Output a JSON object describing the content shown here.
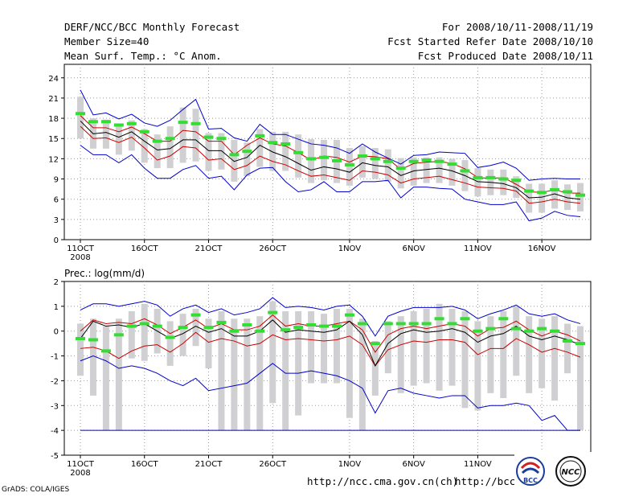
{
  "header": {
    "title": "DERF/NCC/BCC Monthly Forecast",
    "member_size": "Member Size=40",
    "variable": "Mean Surf. Temp.: °C Anom.",
    "period": "For 2008/10/11-2008/11/19",
    "started": "Fcst Started Refer Date 2008/10/10",
    "produced": "Fcst Produced Date 2008/10/11"
  },
  "footer": {
    "url1": "http://ncc.cma.gov.cn(ch)",
    "url2": "http://bcc.c",
    "credit": "GrADS: COLA/IGES",
    "logo_bcc": "BCC",
    "logo_ncc": "NCC"
  },
  "colors": {
    "envelope": "#0000cc",
    "spread": "#cc0000",
    "mean": "#000000",
    "obs": "#33dd33",
    "box": "#d0d0d2"
  },
  "chart_data": [
    {
      "type": "box",
      "title": "Mean Surf. Temp.: °C Anom.",
      "xlabel": "",
      "ylabel": "",
      "ylim": [
        0,
        26
      ],
      "yticks": [
        0,
        3,
        6,
        9,
        12,
        15,
        18,
        21,
        24
      ],
      "x": [
        1,
        2,
        3,
        4,
        5,
        6,
        7,
        8,
        9,
        10,
        11,
        12,
        13,
        14,
        15,
        16,
        17,
        18,
        19,
        20,
        21,
        22,
        23,
        24,
        25,
        26,
        27,
        28,
        29,
        30,
        31,
        32,
        33,
        34,
        35,
        36,
        37,
        38,
        39,
        40
      ],
      "xticks": [
        {
          "day": 1,
          "label": "11OCT"
        },
        {
          "day": 6,
          "label": "16OCT"
        },
        {
          "day": 11,
          "label": "21OCT"
        },
        {
          "day": 16,
          "label": "26OCT"
        },
        {
          "day": 22,
          "label": "1NOV"
        },
        {
          "day": 27,
          "label": "6NOV"
        },
        {
          "day": 32,
          "label": "11NOV"
        },
        {
          "day": 37,
          "label": "16NOV"
        }
      ],
      "year_label": "2008",
      "series": [
        {
          "name": "max",
          "values": [
            22.2,
            18.5,
            18.8,
            17.9,
            18.6,
            17.3,
            16.8,
            17.7,
            19.3,
            20.8,
            16.4,
            16.5,
            15.1,
            14.6,
            17.1,
            15.6,
            15.6,
            14.9,
            14.2,
            14.0,
            13.6,
            12.8,
            14.2,
            13.0,
            12.1,
            11.2,
            12.5,
            12.6,
            13.0,
            12.9,
            12.8,
            10.7,
            11.0,
            11.5,
            10.6,
            8.8,
            9.0,
            9.1,
            9.0,
            9.0
          ]
        },
        {
          "name": "p75",
          "values": [
            18.4,
            16.6,
            16.6,
            16.0,
            16.7,
            15.7,
            14.6,
            14.6,
            16.2,
            16.0,
            14.6,
            14.6,
            12.6,
            14.0,
            15.1,
            14.2,
            13.9,
            12.9,
            11.8,
            12.4,
            12.2,
            11.5,
            12.4,
            12.3,
            12.0,
            10.4,
            11.3,
            11.5,
            11.6,
            11.3,
            10.5,
            9.2,
            9.1,
            9.2,
            8.2,
            7.1,
            7.0,
            7.4,
            6.9,
            6.9
          ]
        },
        {
          "name": "mean",
          "values": [
            17.6,
            15.7,
            15.9,
            15.2,
            16.0,
            14.6,
            13.3,
            13.5,
            14.8,
            14.8,
            13.2,
            13.2,
            11.6,
            12.2,
            14.0,
            13.0,
            12.3,
            11.3,
            10.3,
            10.8,
            10.5,
            10.0,
            11.4,
            11.0,
            10.8,
            9.5,
            10.2,
            10.4,
            10.6,
            10.2,
            9.5,
            8.6,
            8.5,
            8.3,
            7.7,
            6.2,
            6.3,
            6.8,
            6.2,
            6.0
          ]
        },
        {
          "name": "p25",
          "values": [
            16.8,
            15.0,
            15.1,
            14.4,
            15.2,
            13.6,
            11.8,
            12.4,
            13.8,
            13.6,
            11.8,
            12.0,
            10.4,
            11.0,
            12.4,
            11.6,
            11.1,
            10.2,
            9.4,
            9.6,
            9.2,
            8.8,
            10.2,
            10.0,
            9.6,
            8.4,
            9.0,
            9.2,
            9.4,
            8.9,
            8.4,
            7.8,
            7.7,
            7.6,
            7.2,
            5.4,
            5.6,
            6.0,
            5.6,
            5.4
          ]
        },
        {
          "name": "min",
          "values": [
            14.0,
            12.6,
            12.6,
            11.4,
            12.6,
            10.6,
            9.1,
            9.1,
            10.4,
            11.0,
            9.1,
            9.4,
            7.4,
            9.6,
            10.6,
            10.7,
            8.6,
            7.1,
            7.4,
            8.6,
            7.1,
            7.1,
            8.6,
            8.6,
            8.8,
            6.2,
            7.8,
            7.8,
            7.6,
            7.5,
            6.0,
            5.6,
            5.2,
            5.2,
            5.6,
            2.8,
            3.2,
            4.2,
            3.6,
            3.4
          ]
        },
        {
          "name": "observed",
          "values": [
            18.7,
            17.5,
            17.5,
            17.0,
            17.2,
            16.0,
            14.6,
            15.0,
            17.4,
            17.2,
            15.2,
            15.0,
            12.6,
            13.1,
            15.4,
            14.4,
            14.2,
            12.9,
            12.0,
            12.2,
            11.7,
            11.1,
            12.4,
            12.0,
            11.6,
            10.6,
            11.6,
            11.8,
            11.6,
            11.2,
            10.2,
            9.2,
            9.2,
            9.0,
            8.8,
            7.2,
            7.0,
            7.4,
            7.1,
            6.6
          ]
        },
        {
          "name": "box_high",
          "values": [
            21.2,
            18.0,
            17.8,
            17.2,
            17.7,
            16.4,
            15.6,
            16.8,
            19.6,
            19.4,
            15.8,
            15.8,
            14.8,
            14.4,
            16.4,
            16.0,
            16.0,
            15.6,
            14.9,
            14.8,
            14.8,
            13.6,
            13.9,
            13.6,
            13.4,
            12.1,
            12.2,
            12.2,
            12.2,
            12.0,
            11.8,
            10.6,
            10.4,
            10.4,
            9.4,
            8.3,
            8.3,
            8.8,
            8.2,
            8.4
          ]
        },
        {
          "name": "box_low",
          "values": [
            15.0,
            13.5,
            13.5,
            12.6,
            13.2,
            11.4,
            10.6,
            10.6,
            11.4,
            11.6,
            10.2,
            10.4,
            8.6,
            9.4,
            10.8,
            10.2,
            10.2,
            9.2,
            8.4,
            8.8,
            8.4,
            8.0,
            9.2,
            9.0,
            8.6,
            7.6,
            8.0,
            8.4,
            8.4,
            8.0,
            7.2,
            6.4,
            6.6,
            6.6,
            6.2,
            4.0,
            4.0,
            4.6,
            4.4,
            4.2
          ]
        }
      ]
    },
    {
      "type": "box",
      "title": "Prec.: log(mm/d)",
      "xlabel": "",
      "ylabel": "",
      "ylim": [
        -5,
        2
      ],
      "yticks": [
        -5,
        -4,
        -3,
        -2,
        -1,
        0,
        1,
        2
      ],
      "x": [
        1,
        2,
        3,
        4,
        5,
        6,
        7,
        8,
        9,
        10,
        11,
        12,
        13,
        14,
        15,
        16,
        17,
        18,
        19,
        20,
        21,
        22,
        23,
        24,
        25,
        26,
        27,
        28,
        29,
        30,
        31,
        32,
        33,
        34,
        35,
        36,
        37,
        38,
        39,
        40
      ],
      "xticks": [
        {
          "day": 1,
          "label": "11OCT"
        },
        {
          "day": 6,
          "label": "16OCT"
        },
        {
          "day": 11,
          "label": "21OCT"
        },
        {
          "day": 16,
          "label": "26OCT"
        },
        {
          "day": 22,
          "label": "1NOV"
        },
        {
          "day": 27,
          "label": "6NOV"
        },
        {
          "day": 32,
          "label": "11NOV"
        },
        {
          "day": 37,
          "label": "16NOV"
        }
      ],
      "year_label": "2008",
      "series": [
        {
          "name": "max",
          "values": [
            0.85,
            1.1,
            1.1,
            1.0,
            1.1,
            1.2,
            1.05,
            0.6,
            0.9,
            1.05,
            0.75,
            0.9,
            0.65,
            0.75,
            0.9,
            1.35,
            0.95,
            1.0,
            0.95,
            0.85,
            1.0,
            1.05,
            0.6,
            -0.2,
            0.6,
            0.8,
            0.95,
            0.95,
            0.95,
            1.0,
            0.85,
            0.5,
            0.7,
            0.85,
            1.05,
            0.7,
            0.6,
            0.7,
            0.45,
            0.3
          ]
        },
        {
          "name": "p75",
          "values": [
            0.0,
            0.45,
            0.3,
            0.35,
            0.3,
            0.5,
            0.25,
            -0.1,
            0.15,
            0.45,
            0.1,
            0.3,
            0.05,
            0.05,
            0.2,
            0.65,
            0.2,
            0.3,
            0.2,
            0.2,
            0.3,
            0.4,
            0.05,
            -0.85,
            -0.15,
            0.1,
            0.2,
            0.1,
            0.2,
            0.3,
            0.2,
            -0.2,
            0.1,
            0.15,
            0.4,
            0.05,
            -0.2,
            0.0,
            -0.15,
            -0.4
          ]
        },
        {
          "name": "mean",
          "values": [
            -0.3,
            0.4,
            0.2,
            0.25,
            0.15,
            0.3,
            0.0,
            -0.3,
            -0.1,
            0.2,
            -0.05,
            0.1,
            -0.2,
            -0.2,
            0.0,
            0.45,
            -0.05,
            0.05,
            0.0,
            -0.05,
            0.05,
            0.4,
            -0.15,
            -1.4,
            -0.5,
            -0.1,
            0.05,
            -0.05,
            0.0,
            0.1,
            -0.05,
            -0.45,
            -0.2,
            -0.1,
            0.2,
            -0.2,
            -0.35,
            -0.2,
            -0.35,
            -0.55
          ]
        },
        {
          "name": "p25",
          "values": [
            -0.7,
            -0.65,
            -0.8,
            -1.1,
            -0.8,
            -0.6,
            -0.55,
            -0.85,
            -0.5,
            -0.05,
            -0.45,
            -0.3,
            -0.4,
            -0.6,
            -0.5,
            -0.15,
            -0.35,
            -0.3,
            -0.35,
            -0.4,
            -0.35,
            -0.2,
            -0.55,
            -1.4,
            -0.75,
            -0.55,
            -0.4,
            -0.45,
            -0.35,
            -0.35,
            -0.45,
            -0.95,
            -0.7,
            -0.7,
            -0.3,
            -0.55,
            -0.85,
            -0.7,
            -0.85,
            -1.05
          ]
        },
        {
          "name": "min",
          "values": [
            -1.2,
            -1.0,
            -1.2,
            -1.5,
            -1.4,
            -1.5,
            -1.7,
            -2.0,
            -2.2,
            -1.9,
            -2.4,
            -2.3,
            -2.2,
            -2.1,
            -1.7,
            -1.3,
            -1.7,
            -1.7,
            -1.6,
            -1.7,
            -1.8,
            -2.0,
            -2.3,
            -3.3,
            -2.4,
            -2.3,
            -2.5,
            -2.6,
            -2.7,
            -2.6,
            -2.6,
            -3.1,
            -3.0,
            -3.0,
            -2.9,
            -3.0,
            -3.6,
            -3.4,
            -4.0,
            -4.0
          ]
        },
        {
          "name": "floor",
          "values": [
            -4,
            -4,
            -4,
            -4,
            -4,
            -4,
            -4,
            -4,
            -4,
            -4,
            -4,
            -4,
            -4,
            -4,
            -4,
            -4,
            -4,
            -4,
            -4,
            -4,
            -4,
            -4,
            -4,
            -4,
            -4,
            -4,
            -4,
            -4,
            -4,
            -4,
            -4,
            -4,
            -4,
            -4,
            -4,
            -4,
            -4,
            -4,
            -4,
            -4
          ]
        },
        {
          "name": "observed",
          "values": [
            -0.3,
            -0.35,
            -0.8,
            -0.15,
            0.2,
            0.3,
            0.2,
            -0.25,
            0.15,
            0.65,
            0.15,
            0.35,
            0.0,
            0.25,
            0.0,
            0.75,
            0.05,
            0.15,
            0.25,
            0.2,
            0.2,
            0.65,
            0.3,
            -0.5,
            0.3,
            0.3,
            0.3,
            0.3,
            0.5,
            0.3,
            0.5,
            0.0,
            0.1,
            0.5,
            0.1,
            0.0,
            0.1,
            0.0,
            -0.4,
            -0.5
          ]
        },
        {
          "name": "box_high",
          "values": [
            0.3,
            0.5,
            0.2,
            0.5,
            0.8,
            1.1,
            0.9,
            0.4,
            0.7,
            0.9,
            0.5,
            0.8,
            0.5,
            0.5,
            0.6,
            1.2,
            0.8,
            0.8,
            0.8,
            0.7,
            0.9,
            0.9,
            0.5,
            -0.4,
            0.4,
            0.6,
            0.8,
            0.9,
            1.1,
            0.9,
            0.8,
            0.4,
            0.6,
            0.8,
            1.0,
            0.6,
            0.5,
            0.6,
            0.3,
            0.2
          ]
        },
        {
          "name": "box_low",
          "values": [
            -1.8,
            -2.6,
            -4.0,
            -4.0,
            -1.1,
            -1.2,
            -0.9,
            -1.4,
            -1.0,
            -0.6,
            -1.5,
            -4.0,
            -4.0,
            -4.0,
            -4.0,
            -2.9,
            -4.0,
            -3.4,
            -2.1,
            -2.1,
            -2.1,
            -3.5,
            -4.0,
            -2.6,
            -1.7,
            -2.5,
            -2.2,
            -2.1,
            -2.4,
            -2.2,
            -3.1,
            -3.2,
            -2.5,
            -2.7,
            -1.8,
            -2.5,
            -2.3,
            -2.8,
            -1.7,
            -4.0
          ]
        }
      ]
    }
  ]
}
